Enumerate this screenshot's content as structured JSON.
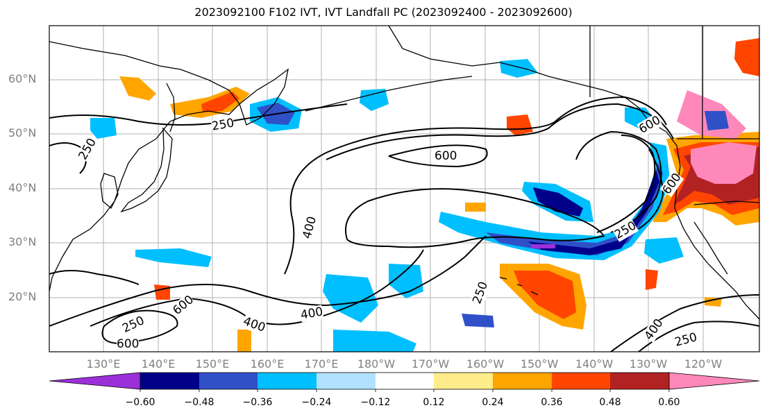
{
  "title": "2023092100 F102 IVT, IVT Landfall PC (2023092400 - 2023092600)",
  "lat_labels": [
    "60°N",
    "50°N",
    "40°N",
    "30°N",
    "20°N"
  ],
  "lon_labels": [
    "130°E",
    "140°E",
    "150°E",
    "160°E",
    "170°E",
    "180°W",
    "170°W",
    "160°W",
    "150°W",
    "140°W",
    "130°W",
    "120°W"
  ],
  "contour_labels": [
    "250",
    "250",
    "600",
    "400",
    "250",
    "600",
    "400",
    "400",
    "600",
    "250",
    "250",
    "400",
    "250",
    "600",
    "400",
    "600"
  ],
  "colorbar": {
    "tick_labels": [
      "−0.60",
      "−0.48",
      "−0.36",
      "−0.24",
      "−0.12",
      "0.12",
      "0.24",
      "0.36",
      "0.48",
      "0.60"
    ],
    "colors": [
      "#9b30d9",
      "#00008b",
      "#3050c8",
      "#00bfff",
      "#b0e2ff",
      "#ffffff",
      "#ffec8b",
      "#ffa500",
      "#ff4500",
      "#b22222",
      "#ff88bb"
    ]
  }
}
